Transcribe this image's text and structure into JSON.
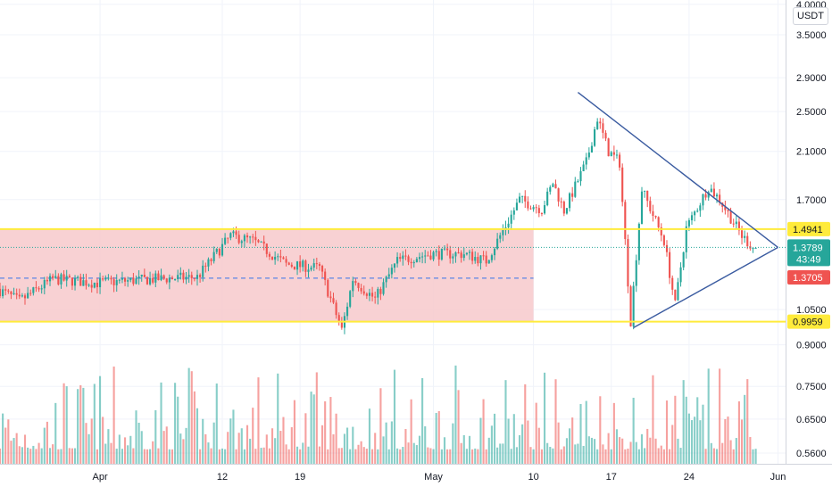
{
  "currency_label": "USDT",
  "chart_data": {
    "type": "candlestick",
    "title": "",
    "y_scale": "log",
    "ylim": [
      0.52,
      4.05
    ],
    "grid": true,
    "x_ticks": [
      {
        "label": "Apr",
        "date": "2021-04-01"
      },
      {
        "label": "12",
        "date": "2021-04-12"
      },
      {
        "label": "19",
        "date": "2021-04-19"
      },
      {
        "label": "May",
        "date": "2021-05-01"
      },
      {
        "label": "10",
        "date": "2021-05-10"
      },
      {
        "label": "17",
        "date": "2021-05-17"
      },
      {
        "label": "24",
        "date": "2021-05-24"
      },
      {
        "label": "Jun",
        "date": "2021-06-01"
      }
    ],
    "y_ticks": [
      "4.0000",
      "3.5000",
      "2.9000",
      "2.5000",
      "2.1000",
      "1.7000",
      "1.0500",
      "0.9000",
      "0.7500",
      "0.6500",
      "0.5600"
    ],
    "price_path": [
      {
        "date": "2021-03-23",
        "price": 1.15
      },
      {
        "date": "2021-03-25",
        "price": 1.09
      },
      {
        "date": "2021-03-28",
        "price": 1.2
      },
      {
        "date": "2021-04-01",
        "price": 1.18
      },
      {
        "date": "2021-04-06",
        "price": 1.2
      },
      {
        "date": "2021-04-10",
        "price": 1.21
      },
      {
        "date": "2021-04-13",
        "price": 1.45
      },
      {
        "date": "2021-04-15",
        "price": 1.42
      },
      {
        "date": "2021-04-18",
        "price": 1.28
      },
      {
        "date": "2021-04-21",
        "price": 1.26
      },
      {
        "date": "2021-04-23",
        "price": 0.96
      },
      {
        "date": "2021-04-24",
        "price": 1.2
      },
      {
        "date": "2021-04-26",
        "price": 1.1
      },
      {
        "date": "2021-04-28",
        "price": 1.3
      },
      {
        "date": "2021-05-01",
        "price": 1.34
      },
      {
        "date": "2021-05-04",
        "price": 1.34
      },
      {
        "date": "2021-05-06",
        "price": 1.3
      },
      {
        "date": "2021-05-08",
        "price": 1.55
      },
      {
        "date": "2021-05-09",
        "price": 1.7
      },
      {
        "date": "2021-05-11",
        "price": 1.63
      },
      {
        "date": "2021-05-12",
        "price": 1.83
      },
      {
        "date": "2021-05-13",
        "price": 1.62
      },
      {
        "date": "2021-05-15",
        "price": 2.0
      },
      {
        "date": "2021-05-16",
        "price": 2.43
      },
      {
        "date": "2021-05-17",
        "price": 2.1
      },
      {
        "date": "2021-05-18",
        "price": 2.0
      },
      {
        "date": "2021-05-19",
        "price": 1.0
      },
      {
        "date": "2021-05-20",
        "price": 1.78
      },
      {
        "date": "2021-05-22",
        "price": 1.42
      },
      {
        "date": "2021-05-23",
        "price": 1.07
      },
      {
        "date": "2021-05-24",
        "price": 1.5
      },
      {
        "date": "2021-05-26",
        "price": 1.8
      },
      {
        "date": "2021-05-27",
        "price": 1.7
      },
      {
        "date": "2021-05-29",
        "price": 1.45
      },
      {
        "date": "2021-05-30",
        "price": 1.3789
      }
    ],
    "horizontal_levels": [
      {
        "price": 1.4941,
        "label": "1.4941",
        "color": "#ffeb3b",
        "label_color": "#131722"
      },
      {
        "price": 0.9959,
        "label": "0.9959",
        "color": "#ffeb3b",
        "label_color": "#131722"
      }
    ],
    "range_box": {
      "date_from": "2021-03-23",
      "date_to": "2021-05-10",
      "price_top": 1.4941,
      "price_bottom": 0.9959,
      "fill": "#f7c9cb"
    },
    "box_midline": {
      "price": 1.205,
      "color": "#5b86e5"
    },
    "current_price": {
      "price": 1.3789,
      "label": "1.3789",
      "countdown": "43:49",
      "color": "#26a69a"
    },
    "last_close": {
      "price": 1.3705,
      "label": "1.3705",
      "color": "#ef5350"
    },
    "trendlines": [
      {
        "from": {
          "date": "2021-05-14",
          "price": 2.72
        },
        "to": {
          "date": "2021-06-01",
          "price": 1.3789
        },
        "color": "#3a5ba0"
      },
      {
        "from": {
          "date": "2021-05-19",
          "price": 0.97
        },
        "to": {
          "date": "2021-06-01",
          "price": 1.3789
        },
        "color": "#3a5ba0"
      }
    ],
    "volume": {
      "region": "bottom",
      "up_color": "#26a69a",
      "down_color": "#ef5350"
    },
    "colors": {
      "up": "#26a69a",
      "down": "#ef5350",
      "grid": "#f0f3fa",
      "axis_text": "#131722"
    }
  }
}
